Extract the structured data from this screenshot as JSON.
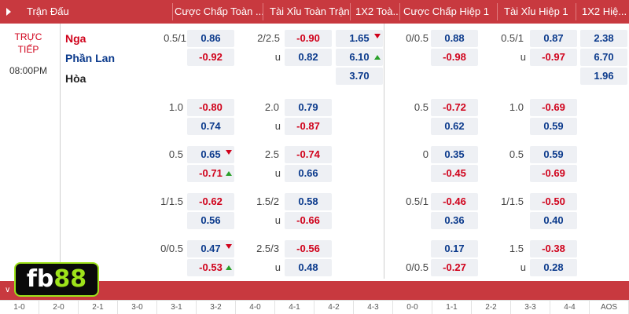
{
  "header": {
    "columns": [
      "Trận Đấu",
      "Cược Chấp Toàn ...",
      "Tài Xỉu Toàn Trận",
      "1X2 Toà...",
      "Cược Chấp Hiệp 1",
      "Tài Xỉu Hiệp 1",
      "1X2 Hiệ..."
    ]
  },
  "match": {
    "status": "TRỰC TIẾP",
    "status_line1": "TRỰC",
    "status_line2": "TIẾP",
    "time": "08:00PM",
    "home": "Nga",
    "away": "Phần Lan",
    "draw": "Hòa"
  },
  "main_row": {
    "ah_ft_line": "0.5/1",
    "ah_ft_home": "0.86",
    "ah_ft_away": "-0.92",
    "ou_ft_line": "2/2.5",
    "ou_ft_over": "-0.90",
    "ou_ft_u": "u",
    "ou_ft_under": "0.82",
    "x12_ft_home": "1.65",
    "x12_ft_away": "6.10",
    "x12_ft_draw": "3.70",
    "ah_h1_line": "0/0.5",
    "ah_h1_home": "0.88",
    "ah_h1_away": "-0.98",
    "ou_h1_line": "0.5/1",
    "ou_h1_over": "0.87",
    "ou_h1_under": "-0.97",
    "x12_h1_home": "2.38",
    "x12_h1_away": "6.70",
    "x12_h1_draw": "1.96"
  },
  "rows": [
    {
      "ah_ft_line": "1.0",
      "ah_ft_home": "-0.80",
      "ah_ft_away": "0.74",
      "ou_ft_line": "2.0",
      "ou_ft_over": "0.79",
      "ou_ft_under": "-0.87",
      "ah_h1_line": "0.5",
      "ah_h1_home": "-0.72",
      "ah_h1_away": "0.62",
      "ou_h1_line": "1.0",
      "ou_h1_over": "-0.69",
      "ou_h1_under": "0.59"
    },
    {
      "ah_ft_line": "0.5",
      "ah_ft_home": "0.65",
      "ah_ft_away": "-0.71",
      "ou_ft_line": "2.5",
      "ou_ft_over": "-0.74",
      "ou_ft_under": "0.66",
      "ah_h1_line": "0",
      "ah_h1_home": "0.35",
      "ah_h1_away": "-0.45",
      "ou_h1_line": "0.5",
      "ou_h1_over": "0.59",
      "ou_h1_under": "-0.69"
    },
    {
      "ah_ft_line": "1/1.5",
      "ah_ft_home": "-0.62",
      "ah_ft_away": "0.56",
      "ou_ft_line": "1.5/2",
      "ou_ft_over": "0.58",
      "ou_ft_under": "-0.66",
      "ah_h1_line": "0.5/1",
      "ah_h1_home": "-0.46",
      "ah_h1_away": "0.36",
      "ou_h1_line": "1/1.5",
      "ou_h1_over": "-0.50",
      "ou_h1_under": "0.40"
    },
    {
      "ah_ft_line": "0/0.5",
      "ah_ft_home": "0.47",
      "ah_ft_away": "-0.53",
      "ou_ft_line": "2.5/3",
      "ou_ft_over": "-0.56",
      "ou_ft_under": "0.48",
      "ah_h1_line": "",
      "ah_h1_home": "0.17",
      "ah_h1_away": "-0.27",
      "ah_h1_line2": "0/0.5",
      "ou_h1_line": "1.5",
      "ou_h1_over": "-0.38",
      "ou_h1_under": "0.28"
    }
  ],
  "u_label": "u",
  "scores": [
    "1-0",
    "2-0",
    "2-1",
    "3-0",
    "3-1",
    "3-2",
    "4-0",
    "4-1",
    "4-2",
    "4-3",
    "0-0",
    "1-1",
    "2-2",
    "3-3",
    "4-4",
    "AOS"
  ],
  "logo": {
    "text_main": "fb",
    "text_accent": "88"
  },
  "colors": {
    "header": "#c8393f",
    "positive": "#0b3a8c",
    "negative": "#d0021b",
    "logo_accent": "#9ee31a"
  }
}
